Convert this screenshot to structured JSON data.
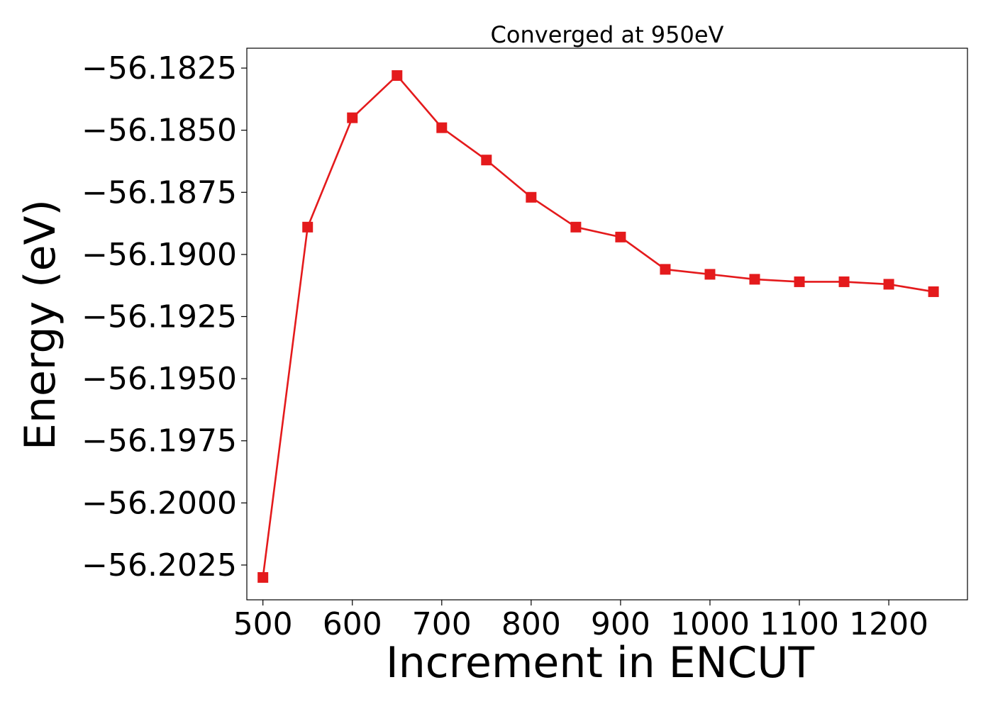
{
  "chart_data": {
    "type": "line",
    "title": "Converged at 950eV",
    "xlabel": "Increment in ENCUT",
    "ylabel": "Energy (eV)",
    "color": "#e41a1c",
    "marker": "square",
    "grid": false,
    "xlim": [
      482,
      1288
    ],
    "ylim": [
      -56.2039,
      -56.1817
    ],
    "x_ticks": [
      500,
      600,
      700,
      800,
      900,
      1000,
      1100,
      1200
    ],
    "x_tick_labels": [
      "500",
      "600",
      "700",
      "800",
      "900",
      "1000",
      "1100",
      "1200"
    ],
    "y_ticks": [
      -56.1825,
      -56.185,
      -56.1875,
      -56.19,
      -56.1925,
      -56.195,
      -56.1975,
      -56.2,
      -56.2025
    ],
    "y_tick_labels": [
      "−56.1825",
      "−56.1850",
      "−56.1875",
      "−56.1900",
      "−56.1925",
      "−56.1950",
      "−56.1975",
      "−56.2000",
      "−56.2025"
    ],
    "x": [
      500,
      550,
      600,
      650,
      700,
      750,
      800,
      850,
      900,
      950,
      1000,
      1050,
      1100,
      1150,
      1200,
      1250
    ],
    "y": [
      -56.203,
      -56.1889,
      -56.1845,
      -56.1828,
      -56.1849,
      -56.1862,
      -56.1877,
      -56.1889,
      -56.1893,
      -56.1906,
      -56.1908,
      -56.191,
      -56.1911,
      -56.1911,
      -56.1912,
      -56.1915
    ]
  }
}
